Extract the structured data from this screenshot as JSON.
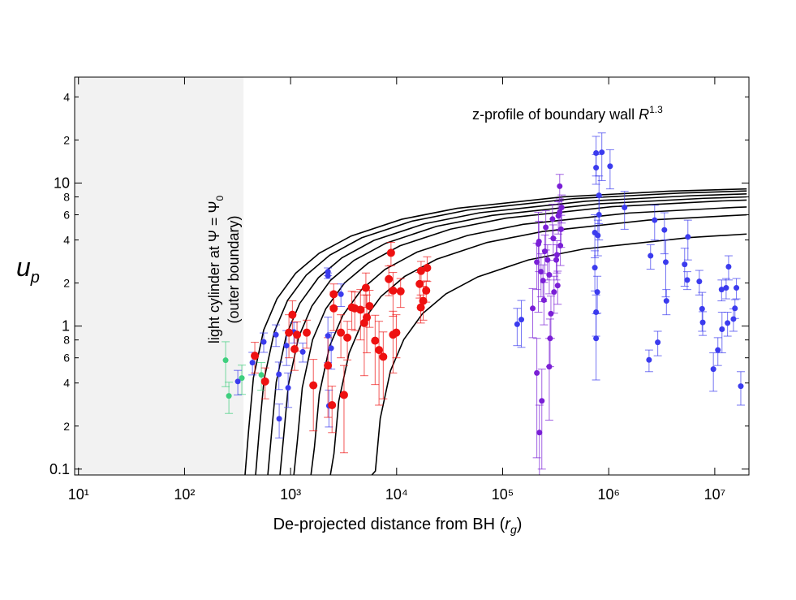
{
  "chart_data": {
    "type": "scatter",
    "log_x": true,
    "log_y": true,
    "annotation": {
      "text": "z-profile of boundary wall ",
      "symbol": "R",
      "exponent": "1.3"
    },
    "region_label": {
      "line1": "light cylinder at Ψ = Ψ",
      "subscript": "0",
      "line2": "(outer boundary)"
    },
    "xlabel": {
      "text": "De-projected distance from BH (",
      "symbol": "r",
      "subscript": "g",
      "close": ")"
    },
    "ylabel": {
      "symbol": "u",
      "subscript": "p"
    },
    "xlim": [
      9.2,
      21000000
    ],
    "ylim": [
      0.091,
      55
    ],
    "xticks": [
      {
        "value": 10,
        "label": "10¹"
      },
      {
        "value": 100,
        "label": "10²"
      },
      {
        "value": 1000,
        "label": "10³"
      },
      {
        "value": 10000,
        "label": "10⁴"
      },
      {
        "value": 100000,
        "label": "10⁵"
      },
      {
        "value": 1000000,
        "label": "10⁶"
      },
      {
        "value": 10000000,
        "label": "10⁷"
      }
    ],
    "yticks": [
      0.1,
      {
        "value": 0.2,
        "label": "2"
      },
      {
        "value": 0.4,
        "label": "4"
      },
      {
        "value": 0.6,
        "label": "6"
      },
      {
        "value": 0.8,
        "label": "8"
      },
      1,
      {
        "value": 2,
        "label": "2"
      },
      {
        "value": 4,
        "label": "4"
      },
      {
        "value": 6,
        "label": "6"
      },
      {
        "value": 8,
        "label": "8"
      },
      10,
      {
        "value": 20,
        "label": "2"
      },
      {
        "value": 40,
        "label": "4"
      }
    ],
    "shaded_region": {
      "xlim": [
        9.2,
        360
      ],
      "color": "#f2f2f2"
    },
    "series": [
      {
        "color": "#3ecf7e",
        "marker_radius": 3.5,
        "x": [
          244,
          262,
          347,
          530
        ],
        "values": [
          0.577,
          0.325,
          0.433,
          0.456
        ],
        "yerr": [
          0.2,
          0.08,
          0.1,
          0.1
        ]
      },
      {
        "color": "#3b3bee",
        "marker_radius": 3.5,
        "x": [
          318,
          437,
          558,
          728,
          781,
          776,
          916,
          1074,
          948,
          1303,
          2250,
          2250,
          2250,
          2300,
          2415,
          2985,
          137000,
          150000,
          760000,
          861000,
          1030000,
          760000,
          810000,
          810000,
          740000,
          790000,
          740000,
          760000,
          780000,
          760000,
          1410000,
          2710000,
          3350000,
          2480000,
          3450000,
          3500000,
          2400000,
          2900000,
          5580000,
          5200000,
          5500000,
          7150000,
          7600000,
          7700000,
          9700000,
          10700000,
          11600000,
          12800000,
          13500000,
          11700000,
          13200000,
          15000000,
          15500000,
          16000000,
          17600000
        ],
        "values": [
          0.41,
          0.555,
          0.775,
          0.87,
          0.225,
          0.46,
          0.73,
          0.91,
          0.37,
          0.66,
          2.4,
          2.25,
          0.855,
          0.277,
          0.7,
          1.67,
          1.03,
          1.11,
          16.2,
          16.4,
          13.1,
          12.8,
          8.2,
          6.0,
          4.5,
          4.3,
          2.56,
          1.25,
          1.73,
          0.82,
          6.75,
          5.5,
          4.7,
          3.1,
          2.8,
          1.5,
          0.58,
          0.77,
          4.2,
          2.7,
          2.1,
          2.05,
          1.32,
          1.06,
          0.5,
          0.68,
          1.8,
          1.85,
          2.6,
          0.95,
          1.05,
          1.12,
          1.33,
          1.85,
          0.38
        ],
        "yerr": [
          0.08,
          0.1,
          0.12,
          0.15,
          0.06,
          0.1,
          0.2,
          0.15,
          0.1,
          0.1,
          0.15,
          0.1,
          0.3,
          0.08,
          0.2,
          0.3,
          0.3,
          0.4,
          5,
          6,
          4,
          3,
          3,
          2,
          1.5,
          1.2,
          0.8,
          0.4,
          0.5,
          0.4,
          2,
          1.5,
          1.5,
          0.6,
          1.2,
          0.3,
          0.1,
          0.15,
          1.3,
          0.8,
          0.3,
          0.4,
          0.4,
          0.2,
          0.15,
          0.15,
          0.3,
          0.3,
          0.5,
          0.3,
          0.2,
          0.2,
          0.2,
          0.3,
          0.1
        ]
      },
      {
        "color": "#ee1111",
        "marker_radius": 5,
        "x": [
          460,
          575,
          965,
          1040,
          1090,
          1150,
          1420,
          1640,
          2250,
          2460,
          2550,
          2550,
          3190,
          2980,
          3430,
          3780,
          4030,
          4560,
          5130,
          5550,
          5230,
          4950,
          6270,
          6820,
          7480,
          8440,
          8850,
          9250,
          9250,
          9930,
          10900,
          16500,
          16900,
          17800,
          19000,
          19400,
          17000
        ],
        "values": [
          0.62,
          0.41,
          0.9,
          1.2,
          0.69,
          0.87,
          0.9,
          0.385,
          0.53,
          0.28,
          1.67,
          1.33,
          0.33,
          0.9,
          0.83,
          1.35,
          1.33,
          1.3,
          1.85,
          1.38,
          1.15,
          1.05,
          0.79,
          0.68,
          0.61,
          2.13,
          3.25,
          1.77,
          0.87,
          0.9,
          1.75,
          1.97,
          1.35,
          1.5,
          1.77,
          2.55,
          2.43
        ],
        "yerr": [
          0.15,
          0.1,
          0.3,
          0.3,
          0.2,
          0.2,
          0.2,
          0.2,
          0.3,
          0.1,
          0.3,
          0.4,
          0.2,
          0.3,
          0.25,
          0.4,
          0.4,
          0.5,
          0.5,
          0.4,
          0.5,
          0.6,
          0.4,
          0.4,
          0.3,
          0.5,
          0.6,
          0.6,
          0.4,
          0.3,
          0.4,
          0.4,
          0.3,
          0.4,
          0.3,
          0.5,
          0.4
        ]
      },
      {
        "color": "#7a1fd6",
        "marker_radius": 3.5,
        "x": [
          192000,
          210000,
          217000,
          210000,
          222000,
          234000,
          220000,
          230000,
          240000,
          245000,
          250000,
          255000,
          265000,
          275000,
          275000,
          280000,
          285000,
          295000,
          300000,
          305000,
          320000,
          330000,
          335000,
          345000,
          350000,
          355000,
          360000,
          345000,
          325000
        ],
        "values": [
          1.33,
          0.47,
          3.75,
          2.8,
          0.18,
          0.3,
          3.9,
          2.4,
          2.08,
          1.52,
          3.33,
          4.9,
          2.9,
          2.28,
          0.52,
          0.82,
          1.22,
          5.6,
          4.1,
          1.73,
          2.9,
          1.92,
          5.9,
          9.5,
          3.65,
          4.75,
          6.75,
          6.25,
          3.15
        ],
        "yerr": [
          0.5,
          0.35,
          2.5,
          1,
          0.1,
          0.2,
          1.5,
          0.8,
          0.6,
          0.5,
          1,
          1.5,
          0.8,
          0.6,
          0.3,
          0.3,
          0.4,
          1.5,
          1,
          0.5,
          0.8,
          0.5,
          1.5,
          2,
          1,
          1.2,
          1.5,
          1.5,
          0.8
        ]
      }
    ],
    "curves": [
      {
        "color": "#000000",
        "x": [
          372,
          402,
          446,
          558,
          744,
          1116,
          1860,
          3720,
          11160,
          37200,
          372000,
          3720000,
          20000000
        ],
        "values": [
          0.091,
          0.186,
          0.434,
          0.939,
          1.55,
          2.34,
          3.23,
          4.26,
          5.58,
          6.66,
          8.01,
          8.77,
          9.1
        ]
      },
      {
        "color": "#000000",
        "x": [
          468,
          505,
          562,
          702,
          936,
          1404,
          2340,
          4680,
          14040,
          46800,
          468000,
          4680000,
          20000000
        ],
        "values": [
          0.091,
          0.181,
          0.422,
          0.912,
          1.51,
          2.27,
          3.13,
          4.14,
          5.42,
          6.47,
          7.78,
          8.51,
          8.8
        ]
      },
      {
        "color": "#000000",
        "x": [
          610,
          659,
          732,
          915,
          1220,
          1830,
          3050,
          6100,
          18300,
          61000,
          610000,
          6100000,
          20000000
        ],
        "values": [
          0.091,
          0.173,
          0.405,
          0.874,
          1.44,
          2.18,
          3.0,
          3.97,
          5.19,
          6.2,
          7.46,
          8.16,
          8.4
        ]
      },
      {
        "color": "#000000",
        "x": [
          794,
          858,
          953,
          1191,
          1588,
          2382,
          3970,
          7940,
          23820,
          79400,
          794000,
          7940000,
          20000000
        ],
        "values": [
          0.091,
          0.166,
          0.388,
          0.838,
          1.38,
          2.09,
          2.88,
          3.8,
          4.98,
          5.94,
          7.15,
          7.82,
          8.0
        ]
      },
      {
        "color": "#000000",
        "x": [
          1074,
          1160,
          1289,
          1611,
          2148,
          3222,
          5370,
          10740,
          32220,
          107400,
          1074000,
          10740000,
          20000000
        ],
        "values": [
          0.091,
          0.159,
          0.371,
          0.801,
          1.32,
          2.0,
          2.75,
          3.64,
          4.76,
          5.68,
          6.83,
          7.48,
          7.6
        ]
      },
      {
        "color": "#000000",
        "x": [
          1556,
          1680,
          1867,
          2334,
          3112,
          4668,
          7780,
          15560,
          46680,
          155600,
          1556000,
          15560000,
          20000000
        ],
        "values": [
          0.091,
          0.143,
          0.335,
          0.724,
          1.19,
          1.8,
          2.49,
          3.29,
          4.3,
          5.14,
          6.17,
          6.76,
          6.8
        ]
      },
      {
        "color": "#000000",
        "x": [
          2373,
          2563,
          2848,
          3560,
          4746,
          7119,
          11865,
          23730,
          71190,
          237300,
          2373000,
          20000000
        ],
        "values": [
          0.091,
          0.128,
          0.299,
          0.646,
          1.07,
          1.61,
          2.22,
          2.93,
          3.84,
          4.58,
          5.51,
          6.0
        ]
      },
      {
        "color": "#000000",
        "x": [
          5838,
          6305,
          7006,
          8757,
          11676,
          17514,
          29190,
          58380,
          175140,
          583800,
          5838000,
          20000000
        ],
        "values": [
          0.091,
          0.097,
          0.226,
          0.488,
          0.805,
          1.22,
          1.68,
          2.21,
          2.9,
          3.46,
          4.16,
          4.4
        ]
      }
    ]
  }
}
